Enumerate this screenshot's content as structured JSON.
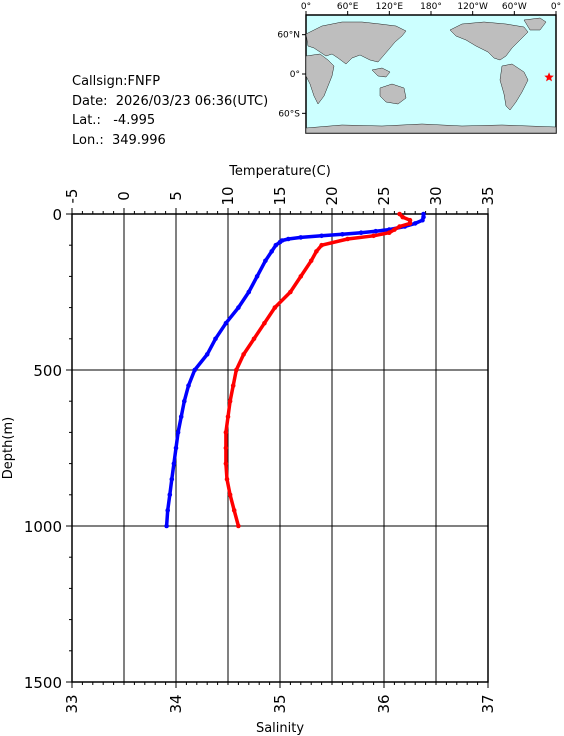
{
  "info": {
    "callsign_label": "Callsign:",
    "callsign": "FNFP",
    "date_label": "Date:",
    "date": "2026/03/23 06:36(UTC)",
    "lat_label": "Lat.:",
    "lat": "-4.995",
    "lon_label": "Lon.:",
    "lon": "349.996"
  },
  "map": {
    "top_ticks": [
      "0°",
      "60°E",
      "120°E",
      "180°",
      "120°W",
      "60°W",
      "0°"
    ],
    "left_ticks": [
      "60°N",
      "0°",
      "60°S"
    ],
    "ocean_color": "#ccffff",
    "land_color": "#bebebe",
    "marker": "red-star",
    "marker_color": "#ff0000",
    "marker_lon": 349.996,
    "marker_lat": -4.995
  },
  "chart_data": {
    "type": "line",
    "title": "",
    "top_axis": {
      "label": "Temperature(C)",
      "range": [
        -5,
        35
      ],
      "ticks": [
        "-5",
        "0",
        "5",
        "10",
        "15",
        "20",
        "25",
        "30",
        "35"
      ]
    },
    "bottom_axis": {
      "label": "Salinity",
      "range": [
        33,
        37
      ],
      "ticks": [
        "33",
        "34",
        "35",
        "36",
        "37"
      ]
    },
    "left_axis": {
      "label": "Depth(m)",
      "range": [
        0,
        1500
      ],
      "inverted": true,
      "ticks": [
        "0",
        "500",
        "1000",
        "1500"
      ]
    },
    "grid": true,
    "series": [
      {
        "variable": "temperature",
        "axis": "top",
        "color": "#0000ff",
        "depth": [
          0,
          10,
          20,
          30,
          40,
          50,
          55,
          60,
          65,
          70,
          75,
          80,
          85,
          90,
          100,
          120,
          150,
          200,
          250,
          300,
          350,
          400,
          450,
          500,
          550,
          600,
          650,
          700,
          750,
          800,
          850,
          900,
          950,
          1000
        ],
        "values": [
          28.8,
          28.8,
          28.7,
          28.0,
          27.0,
          25.5,
          24.2,
          22.8,
          21.0,
          19.0,
          17.0,
          15.8,
          15.2,
          15.0,
          14.6,
          14.2,
          13.6,
          12.8,
          12.0,
          11.0,
          9.8,
          8.8,
          8.0,
          6.8,
          6.2,
          5.8,
          5.5,
          5.2,
          5.0,
          4.8,
          4.6,
          4.4,
          4.2,
          4.1
        ]
      },
      {
        "variable": "salinity",
        "axis": "bottom",
        "color": "#ff0000",
        "depth": [
          0,
          10,
          20,
          30,
          40,
          50,
          60,
          70,
          80,
          100,
          120,
          150,
          200,
          250,
          300,
          350,
          400,
          450,
          500,
          550,
          600,
          650,
          700,
          750,
          800,
          850,
          900,
          950,
          1000
        ],
        "values": [
          36.15,
          36.18,
          36.25,
          36.25,
          36.15,
          36.1,
          36.05,
          35.9,
          35.65,
          35.4,
          35.35,
          35.3,
          35.2,
          35.1,
          34.95,
          34.85,
          34.75,
          34.65,
          34.58,
          34.55,
          34.52,
          34.5,
          34.48,
          34.48,
          34.48,
          34.49,
          34.52,
          34.56,
          34.6
        ]
      }
    ]
  }
}
